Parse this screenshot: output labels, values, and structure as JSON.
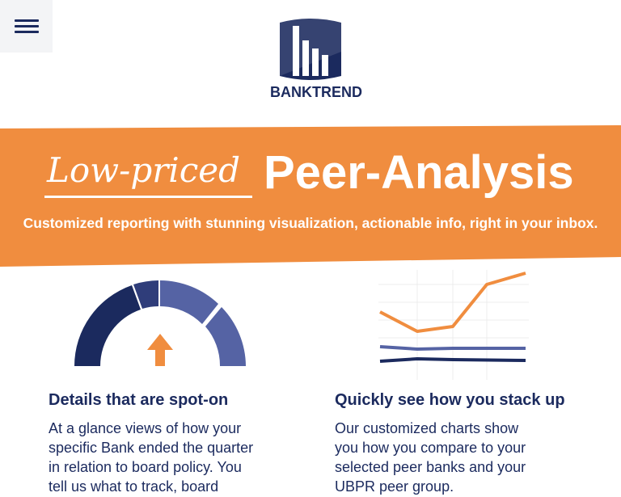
{
  "brand": {
    "name_part1": "BANK",
    "name_part2": "TREND",
    "navy": "#1b2a5e",
    "orange": "#f08d3f",
    "periwinkle": "#5563a4"
  },
  "nav": {
    "menu_icon": "hamburger-menu-icon"
  },
  "hero": {
    "handwritten": "Low-priced",
    "headline": "Peer-Analysis",
    "tagline": "Customized reporting with stunning visualization, actionable info, right in your inbox."
  },
  "features": [
    {
      "icon": "gauge-icon",
      "title": "Details that are spot-on",
      "lines": [
        "At a glance views of how your",
        "specific Bank ended the quarter",
        "in relation to board policy. You",
        "tell us what to track, board"
      ]
    },
    {
      "icon": "line-chart-icon",
      "title": "Quickly see how you stack up",
      "lines": [
        "Our customized charts show",
        "you how you compare to your",
        "selected peer banks and your",
        "UBPR peer group."
      ]
    }
  ]
}
